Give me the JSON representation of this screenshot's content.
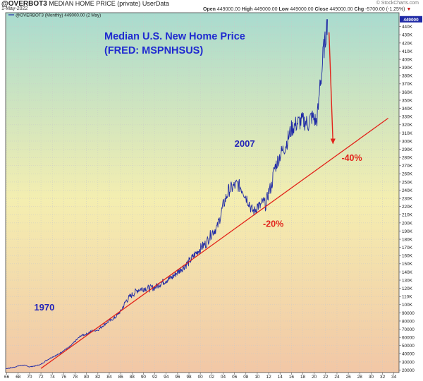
{
  "header": {
    "symbol": "@OVERBOT3",
    "name": "MEDIAN HOME PRICE (private)",
    "tag": "UserData",
    "date": "1-May-2022",
    "legend": "@OVERBOT3 (Monthly) 449000.00 (2 May)",
    "open_label": "Open",
    "open": "449000.00",
    "high_label": "High",
    "high": "449000.00",
    "low_label": "Low",
    "low": "449000.00",
    "close_label": "Close",
    "close": "449000.00",
    "chg_label": "Chg",
    "chg": "-5700.00 (-1.25%)",
    "chg_arrow": "▼",
    "brand": "© StockCharts.com"
  },
  "colors": {
    "series": "#1f2aa6",
    "trend": "#e2231a",
    "title": "#1f2ad0",
    "annotation_blue": "#2323b8",
    "annotation_red": "#e2231a",
    "bg_top": "#a9dbcf",
    "bg_mid": "#f4eeb0",
    "bg_bottom": "#f2c7a6",
    "price_tag": "#1f2aa6"
  },
  "chart_data": {
    "type": "line",
    "title": "Median U.S. New Home Price",
    "subtitle": "(FRED: MSPNHSUS)",
    "xlabel": "",
    "ylabel": "",
    "x_ticks": [
      "66",
      "68",
      "70",
      "72",
      "74",
      "76",
      "78",
      "80",
      "82",
      "84",
      "86",
      "88",
      "90",
      "92",
      "94",
      "96",
      "98",
      "00",
      "02",
      "04",
      "06",
      "08",
      "10",
      "12",
      "14",
      "16",
      "18",
      "20",
      "22",
      "24",
      "26",
      "28",
      "30",
      "32",
      "34"
    ],
    "y_ticks": [
      "20000",
      "30000",
      "40000",
      "50000",
      "60000",
      "70000",
      "80000",
      "90000",
      "100K",
      "110K",
      "120K",
      "130K",
      "140K",
      "150K",
      "160K",
      "170K",
      "180K",
      "190K",
      "200K",
      "210K",
      "220K",
      "230K",
      "240K",
      "250K",
      "260K",
      "270K",
      "280K",
      "290K",
      "300K",
      "310K",
      "320K",
      "330K",
      "340K",
      "350K",
      "360K",
      "370K",
      "380K",
      "390K",
      "400K",
      "410K",
      "420K",
      "430K",
      "440K"
    ],
    "ylim": [
      17000,
      457000
    ],
    "xlim": [
      1965.8,
      2034.9
    ],
    "grid": true,
    "last_value_label": "449000",
    "series": [
      {
        "x": [
          1963.0,
          1964.0,
          1965.0,
          1966.0,
          1967.0,
          1968.0,
          1969.0,
          1970.0,
          1971.0,
          1972.0,
          1973.0,
          1974.0,
          1975.0,
          1976.0,
          1977.0,
          1978.0,
          1979.0,
          1980.0,
          1981.0,
          1982.0,
          1983.0,
          1984.0,
          1985.0,
          1986.0,
          1987.0,
          1988.0,
          1989.0,
          1990.0,
          1991.0,
          1992.0,
          1993.0,
          1994.0,
          1995.0,
          1996.0,
          1997.0,
          1998.0,
          1999.0,
          2000.0,
          2001.0,
          2002.0,
          2003.0,
          2004.0,
          2005.0,
          2006.0,
          2006.5,
          2007.0,
          2007.5,
          2008.0,
          2008.5,
          2009.0,
          2009.5,
          2010.0,
          2010.5,
          2011.0,
          2011.5,
          2012.0,
          2012.5,
          2013.0,
          2014.0,
          2015.0,
          2016.0,
          2017.0,
          2018.0,
          2019.0,
          2019.5,
          2020.0,
          2020.4,
          2020.8,
          2021.0,
          2021.3,
          2021.6,
          2021.9,
          2022.0,
          2022.2,
          2022.33
        ],
        "values": [
          18000,
          19000,
          20000,
          22000,
          23000,
          25000,
          26000,
          24000,
          25000,
          27000,
          32000,
          36000,
          39000,
          44000,
          48000,
          55000,
          62000,
          64000,
          68000,
          69000,
          75000,
          80000,
          84000,
          92000,
          105000,
          112000,
          118000,
          120000,
          120000,
          121000,
          126000,
          130000,
          133000,
          140000,
          146000,
          152000,
          161000,
          169000,
          175000,
          188000,
          195000,
          221000,
          240000,
          245000,
          247000,
          244000,
          240000,
          232000,
          226000,
          216000,
          214000,
          221000,
          220000,
          226000,
          222000,
          238000,
          245000,
          266000,
          283000,
          295000,
          315000,
          322000,
          325000,
          321000,
          330000,
          327000,
          323000,
          345000,
          372000,
          380000,
          410000,
          420000,
          428000,
          440000,
          449000
        ]
      },
      {
        "name": "trend",
        "x": [
          1972.0,
          2033.0
        ],
        "values": [
          22000,
          328000
        ]
      }
    ],
    "annotations": [
      {
        "text": "1970",
        "x": 1970.8,
        "y": 93000
      },
      {
        "text": "2007",
        "x": 2006.0,
        "y": 293000
      },
      {
        "text": "-20%",
        "x": 2011.0,
        "y": 195000
      },
      {
        "text": "-40%",
        "x": 2024.8,
        "y": 276000
      }
    ],
    "arrow": {
      "from": [
        2022.6,
        433000
      ],
      "to": [
        2023.3,
        297000
      ]
    }
  }
}
